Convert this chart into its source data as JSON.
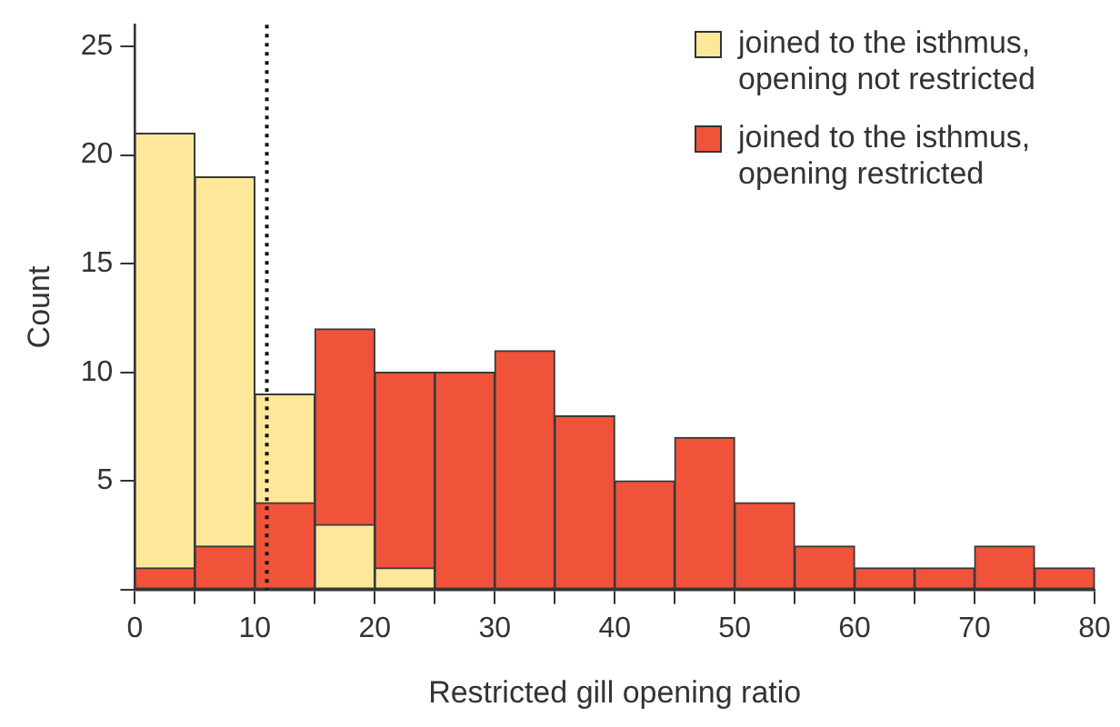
{
  "chart_data": {
    "type": "histogram",
    "xlabel": "Restricted gill opening ratio",
    "ylabel": "Count",
    "bins": [
      0,
      5,
      10,
      15,
      20,
      25,
      30,
      35,
      40,
      45,
      50,
      55,
      60,
      65,
      70,
      75,
      80
    ],
    "series": [
      {
        "name": "joined to the isthmus, opening not restricted",
        "color": "#fde89a",
        "values": [
          21,
          19,
          9,
          3,
          1,
          0,
          0,
          0,
          0,
          0,
          0,
          0,
          0,
          0,
          0,
          0
        ]
      },
      {
        "name": "joined to the isthmus, opening restricted",
        "color": "#f0533a",
        "values": [
          1,
          2,
          4,
          12,
          10,
          10,
          11,
          8,
          5,
          7,
          4,
          2,
          1,
          1,
          2,
          1
        ]
      }
    ],
    "xlim": [
      0,
      80
    ],
    "xticks": [
      0,
      {
        "value": 5,
        "label": null
      },
      10,
      {
        "value": 15,
        "label": null
      },
      20,
      {
        "value": 25,
        "label": null
      },
      30,
      {
        "value": 35,
        "label": null
      },
      40,
      {
        "value": 45,
        "label": null
      },
      50,
      {
        "value": 55,
        "label": null
      },
      60,
      {
        "value": 65,
        "label": null
      },
      70,
      {
        "value": 75,
        "label": null
      },
      80
    ],
    "ylim": [
      0,
      26
    ],
    "yticks": [
      {
        "value": 0,
        "label": null
      },
      5,
      10,
      15,
      20,
      25
    ],
    "ref_lines": [
      {
        "axis": "x",
        "value": 11,
        "color": "#111111",
        "line_style": "dotted"
      }
    ],
    "grid": false,
    "legend": "top right"
  }
}
